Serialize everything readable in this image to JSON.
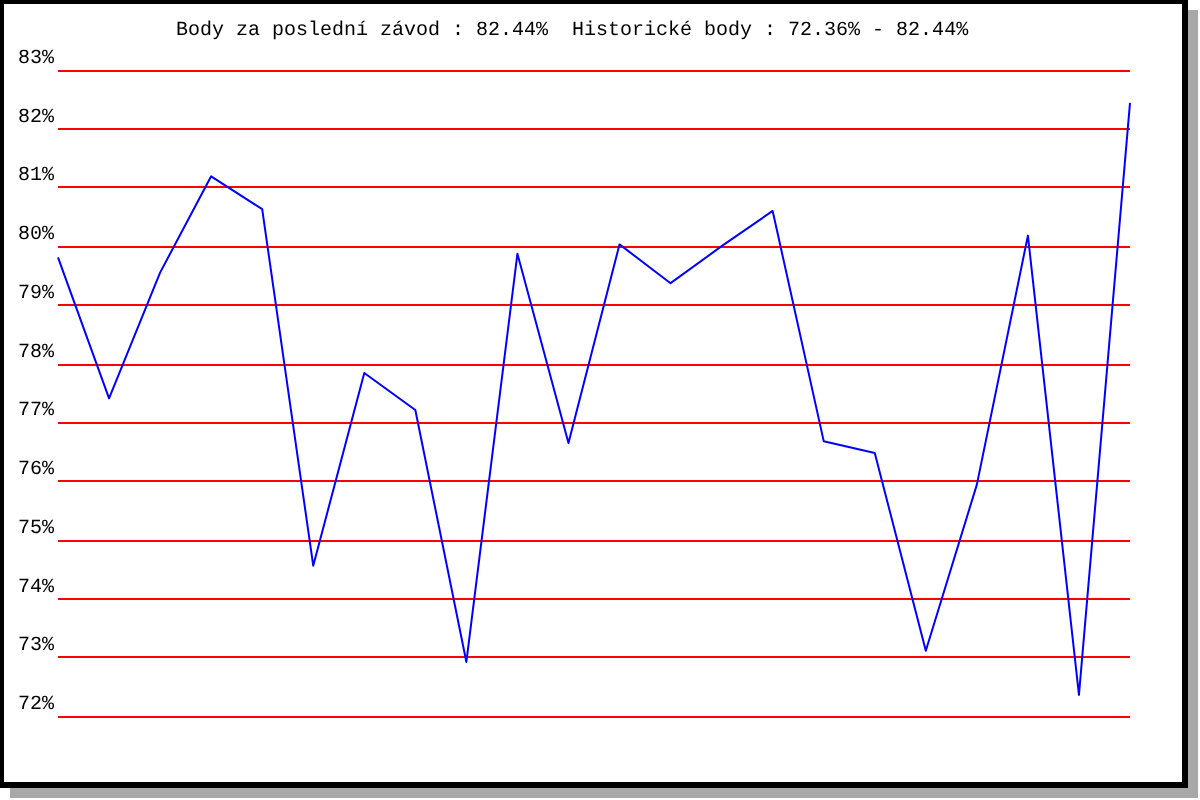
{
  "chart_data": {
    "type": "line",
    "title": "Body za poslední závod : 82.44%  Historické body : 72.36% - 82.44%",
    "categories": [
      null,
      null,
      null,
      null,
      null,
      null,
      null,
      null,
      null,
      null,
      null,
      null,
      null,
      null,
      null,
      null,
      null,
      null,
      null,
      null,
      null,
      null
    ],
    "series": [
      {
        "color": "#0000ff",
        "values": [
          79.81,
          77.41,
          79.55,
          81.19,
          80.63,
          74.56,
          77.84,
          77.21,
          72.92,
          79.87,
          76.65,
          80.03,
          79.37,
          80.0,
          80.6,
          76.68,
          76.48,
          73.11,
          75.94,
          80.18,
          72.36,
          82.44
        ]
      }
    ],
    "ylim": [
      72,
      83
    ],
    "yticks": [
      {
        "value": 72,
        "label": "72%"
      },
      {
        "value": 73,
        "label": "73%"
      },
      {
        "value": 74,
        "label": "74%"
      },
      {
        "value": 75,
        "label": "75%"
      },
      {
        "value": 76,
        "label": "76%"
      },
      {
        "value": 77,
        "label": "77%"
      },
      {
        "value": 78,
        "label": "78%"
      },
      {
        "value": 79,
        "label": "79%"
      },
      {
        "value": 80,
        "label": "80%"
      },
      {
        "value": 81,
        "label": "81%"
      },
      {
        "value": 82,
        "label": "82%"
      },
      {
        "value": 83,
        "label": "83%"
      }
    ],
    "grid": "y",
    "tick_labels": "y",
    "marker": "none",
    "line_style": "solid"
  }
}
